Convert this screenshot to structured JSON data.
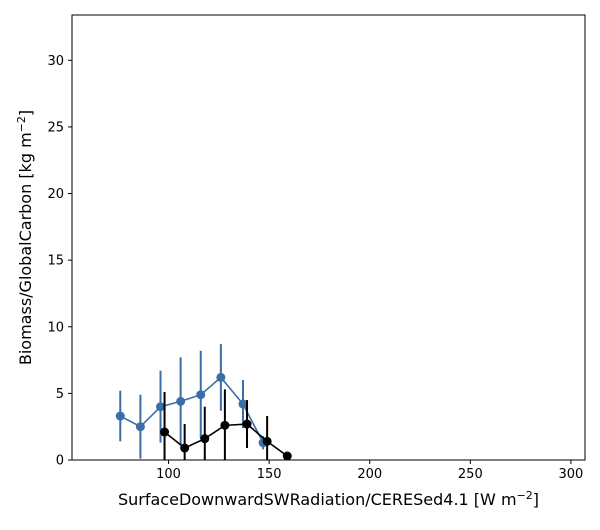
{
  "chart_data": {
    "type": "scatter",
    "xlabel": "SurfaceDownwardSWRadiation/CERESed4.1 [W m$^{-2}$]",
    "ylabel": "Biomass/GlobalCarbon [kg m$^{-2}$]",
    "xlim": [
      52,
      307
    ],
    "ylim": [
      0,
      33.4
    ],
    "xticks": [
      100,
      150,
      200,
      250,
      300
    ],
    "yticks": [
      0,
      5,
      10,
      15,
      20,
      25,
      30
    ],
    "grid": false,
    "legend": "none",
    "series": [
      {
        "color": "#3a6ea5",
        "x": [
          76,
          86,
          96,
          106,
          116,
          126,
          137,
          147
        ],
        "y": [
          3.3,
          2.5,
          4.0,
          4.4,
          4.9,
          6.2,
          4.2,
          1.3
        ],
        "err": [
          1.9,
          2.4,
          2.7,
          3.3,
          3.3,
          2.5,
          1.8,
          0.5
        ]
      },
      {
        "color": "#000000",
        "x": [
          98,
          108,
          118,
          128,
          139,
          149,
          159
        ],
        "y": [
          2.1,
          0.9,
          1.6,
          2.6,
          2.7,
          1.4,
          0.3
        ],
        "err": [
          3.0,
          1.8,
          2.4,
          2.7,
          1.8,
          1.9,
          0.2
        ]
      }
    ]
  }
}
